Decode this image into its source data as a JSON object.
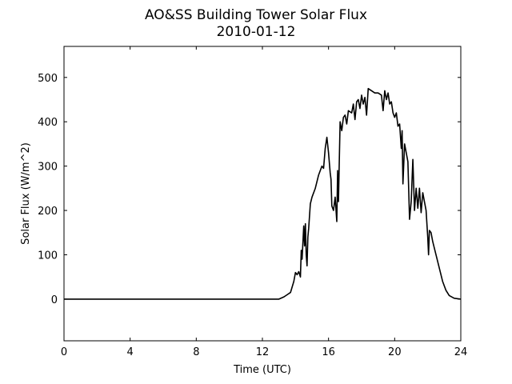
{
  "chart_data": {
    "type": "line",
    "title": "AO&SS Building Tower Solar Flux",
    "subtitle": "2010-01-12",
    "x_label": "Time (UTC)",
    "y_label": "Solar Flux (W/m^2)",
    "color": "#000000",
    "xlim": [
      0,
      24
    ],
    "xticks": [
      0,
      4,
      8,
      12,
      16,
      20,
      24
    ],
    "ylim": [
      -94,
      570
    ],
    "yticks": [
      0,
      100,
      200,
      300,
      400,
      500
    ],
    "x": [
      0,
      13.0,
      13.3,
      13.5,
      13.7,
      13.9,
      14.0,
      14.1,
      14.2,
      14.3,
      14.35,
      14.4,
      14.5,
      14.55,
      14.6,
      14.65,
      14.7,
      14.75,
      14.8,
      14.9,
      15.0,
      15.2,
      15.4,
      15.6,
      15.7,
      15.8,
      15.9,
      16.0,
      16.1,
      16.15,
      16.2,
      16.3,
      16.4,
      16.5,
      16.55,
      16.6,
      16.7,
      16.8,
      16.9,
      17.0,
      17.1,
      17.2,
      17.4,
      17.5,
      17.6,
      17.7,
      17.8,
      17.9,
      18.0,
      18.1,
      18.2,
      18.3,
      18.4,
      18.6,
      18.8,
      19.0,
      19.2,
      19.3,
      19.4,
      19.5,
      19.6,
      19.7,
      19.8,
      19.9,
      20.0,
      20.1,
      20.2,
      20.3,
      20.4,
      20.45,
      20.5,
      20.6,
      20.7,
      20.8,
      20.9,
      21.0,
      21.1,
      21.2,
      21.3,
      21.4,
      21.5,
      21.6,
      21.7,
      21.8,
      21.9,
      22.0,
      22.05,
      22.1,
      22.2,
      22.3,
      22.5,
      22.7,
      22.9,
      23.1,
      23.3,
      23.6,
      24
    ],
    "values": [
      0,
      0,
      5,
      10,
      15,
      40,
      60,
      55,
      62,
      50,
      110,
      90,
      165,
      120,
      170,
      100,
      75,
      140,
      160,
      215,
      230,
      250,
      280,
      300,
      295,
      340,
      365,
      330,
      285,
      270,
      210,
      200,
      230,
      175,
      290,
      220,
      400,
      380,
      410,
      415,
      395,
      425,
      420,
      440,
      405,
      445,
      450,
      430,
      460,
      440,
      455,
      415,
      475,
      470,
      465,
      465,
      460,
      425,
      470,
      450,
      465,
      440,
      445,
      420,
      410,
      420,
      390,
      395,
      340,
      380,
      260,
      350,
      330,
      310,
      180,
      220,
      315,
      200,
      250,
      205,
      250,
      195,
      240,
      220,
      200,
      140,
      100,
      155,
      150,
      130,
      100,
      70,
      40,
      20,
      8,
      2,
      0
    ]
  }
}
